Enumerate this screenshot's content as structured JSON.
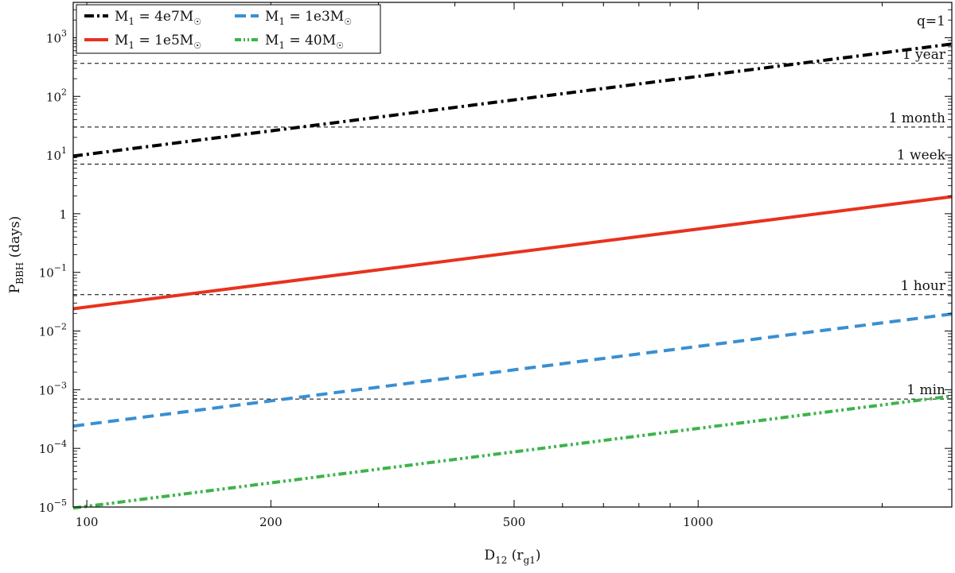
{
  "chart_data": {
    "type": "line",
    "title": "",
    "xlabel": {
      "main": "D",
      "sub": "12",
      "rest": " (r",
      "rest_sub": "g1",
      "close": ")"
    },
    "ylabel": {
      "main": "P",
      "sub": "BBH",
      "rest": " (days)"
    },
    "xscale": "log",
    "yscale": "log",
    "xlim": [
      95,
      2600
    ],
    "ylim": [
      1e-05,
      4000
    ],
    "grid": false,
    "legend_position": "upper-left",
    "x_ticks": [
      {
        "value": 100,
        "label": "100"
      },
      {
        "value": 200,
        "label": "200"
      },
      {
        "value": 500,
        "label": "500"
      },
      {
        "value": 1000,
        "label": "1000"
      }
    ],
    "x_minor_ticks": [
      300,
      400,
      600,
      700,
      800,
      900,
      2000
    ],
    "y_ticks": [
      {
        "value": 1e-05,
        "base": "10",
        "exp": "−5"
      },
      {
        "value": 0.0001,
        "base": "10",
        "exp": "−4"
      },
      {
        "value": 0.001,
        "base": "10",
        "exp": "−3"
      },
      {
        "value": 0.01,
        "base": "10",
        "exp": "−2"
      },
      {
        "value": 0.1,
        "base": "10",
        "exp": "−1"
      },
      {
        "value": 1,
        "base": "1",
        "exp": ""
      },
      {
        "value": 10,
        "base": "10",
        "exp": "1"
      },
      {
        "value": 100,
        "base": "10",
        "exp": "2"
      },
      {
        "value": 1000,
        "base": "10",
        "exp": "3"
      }
    ],
    "hlines": [
      {
        "value": 365,
        "label": "1 year"
      },
      {
        "value": 30,
        "label": "1 month"
      },
      {
        "value": 7,
        "label": "1 week"
      },
      {
        "value": 0.0417,
        "label": "1 hour"
      },
      {
        "value": 0.000694,
        "label": "1 min"
      }
    ],
    "annotation": "q=1",
    "series": [
      {
        "name": "M₁ = 4e7M☉",
        "legend_main": "M",
        "legend_sub": "1",
        "legend_val": "= 4e7M",
        "legend_unit_sub": "☉",
        "color": "#000000",
        "style": "dashdot",
        "x": [
          95,
          2600
        ],
        "y": [
          9.6,
          780
        ]
      },
      {
        "name": "M₁ = 1e5M☉",
        "legend_main": "M",
        "legend_sub": "1",
        "legend_val": "= 1e5M",
        "legend_unit_sub": "☉",
        "color": "#e8321e",
        "style": "solid",
        "x": [
          95,
          2600
        ],
        "y": [
          0.024,
          1.95
        ]
      },
      {
        "name": "M₁ = 1e3M☉",
        "legend_main": "M",
        "legend_sub": "1",
        "legend_val": "= 1e3M",
        "legend_unit_sub": "☉",
        "color": "#3a8fd1",
        "style": "dashed",
        "x": [
          95,
          2600
        ],
        "y": [
          0.00024,
          0.0195
        ]
      },
      {
        "name": "M₁ = 40M☉",
        "legend_main": "M",
        "legend_sub": "1",
        "legend_val": "= 40M",
        "legend_unit_sub": "☉",
        "color": "#3cb44b",
        "style": "dashdotdot",
        "x": [
          95,
          2600
        ],
        "y": [
          9.6e-06,
          0.00078
        ]
      }
    ]
  }
}
